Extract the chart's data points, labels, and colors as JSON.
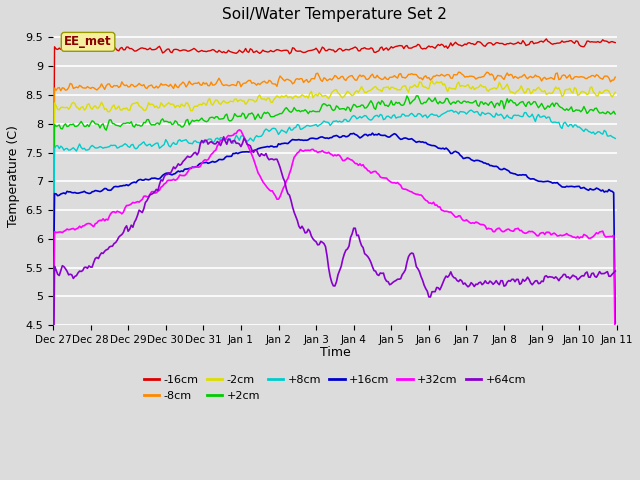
{
  "title": "Soil/Water Temperature Set 2",
  "xlabel": "Time",
  "ylabel": "Temperature (C)",
  "ylim": [
    4.5,
    9.7
  ],
  "yticks": [
    4.5,
    5.0,
    5.5,
    6.0,
    6.5,
    7.0,
    7.5,
    8.0,
    8.5,
    9.0,
    9.5
  ],
  "bg_color": "#dcdcdc",
  "grid_color": "#ffffff",
  "annotation_text": "EE_met",
  "annotation_box_facecolor": "#f5f0a0",
  "annotation_box_edgecolor": "#999900",
  "annotation_text_color": "#8b0000",
  "series": {
    "-16cm": {
      "color": "#dd0000",
      "lw": 1.0
    },
    "-8cm": {
      "color": "#ff8800",
      "lw": 1.0
    },
    "-2cm": {
      "color": "#dddd00",
      "lw": 1.0
    },
    "+2cm": {
      "color": "#00cc00",
      "lw": 1.0
    },
    "+8cm": {
      "color": "#00cccc",
      "lw": 1.0
    },
    "+16cm": {
      "color": "#0000cc",
      "lw": 1.2
    },
    "+32cm": {
      "color": "#ff00ff",
      "lw": 1.2
    },
    "+64cm": {
      "color": "#8800cc",
      "lw": 1.2
    }
  },
  "date_labels": [
    "Dec 27",
    "Dec 28",
    "Dec 29",
    "Dec 30",
    "Dec 31",
    "Jan 1",
    "Jan 2",
    "Jan 3",
    "Jan 4",
    "Jan 5",
    "Jan 6",
    "Jan 7",
    "Jan 8",
    "Jan 9",
    "Jan 10",
    "Jan 11"
  ],
  "n_days": 15,
  "n_per_day": 24
}
